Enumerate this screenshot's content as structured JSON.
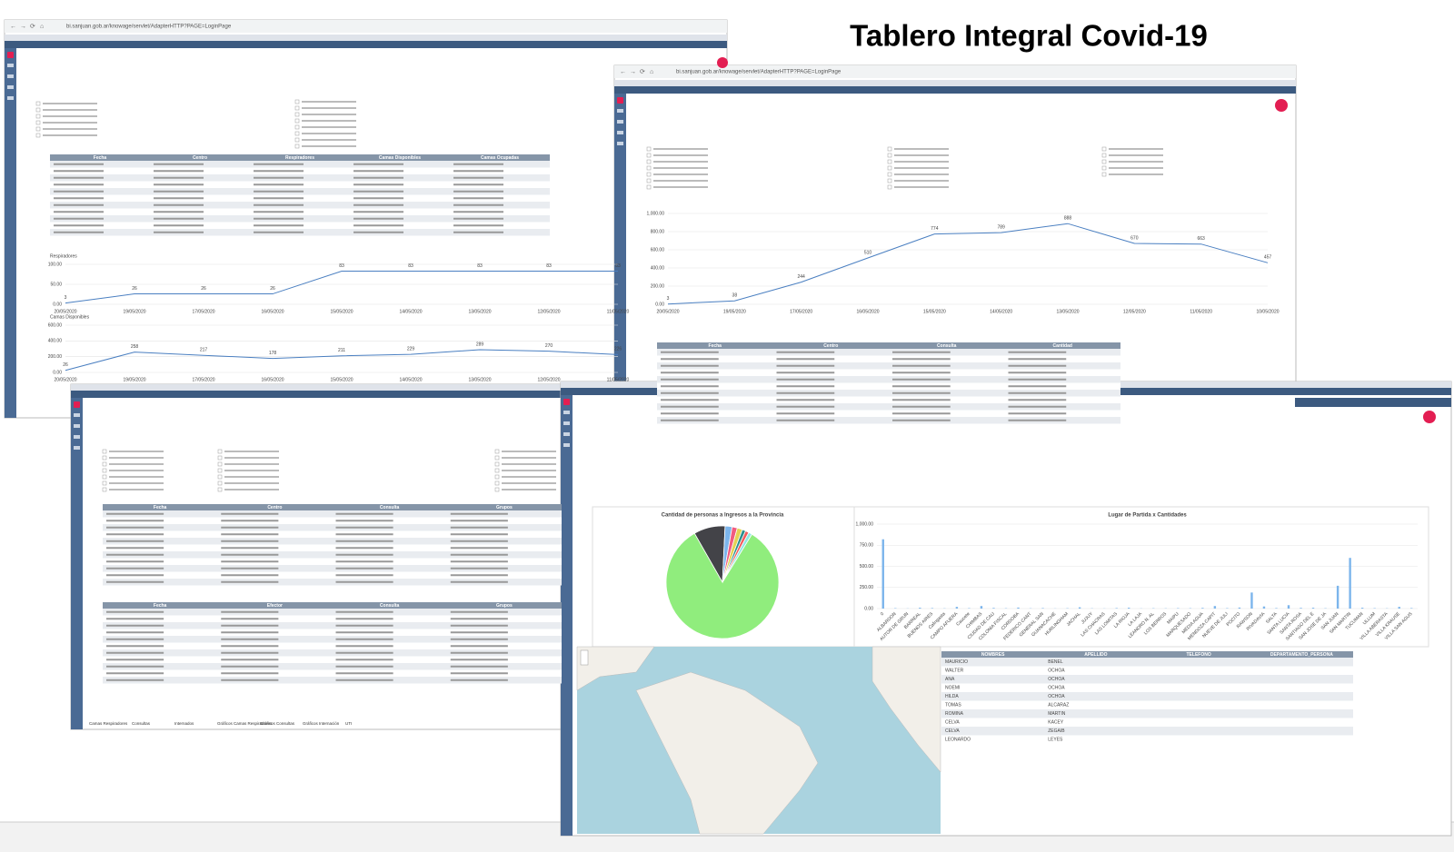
{
  "title": "Tablero Integral Covid-19",
  "url": "bi.sanjuan.gob.ar/knowage/servlet/AdapterHTTP?PAGE=LoginPage",
  "tabs": [
    "Camas Respiradores",
    "Consultas",
    "Internados",
    "Gráficos Camas Respiradores",
    "Gráficos Consultas",
    "Gráficos Internación",
    "UTI"
  ],
  "tables": [
    {
      "header": [
        "Fecha",
        "Centro",
        "Respiradores",
        "Camas Disponibles",
        "Camas Ocupadas"
      ]
    },
    {
      "header": [
        "Fecha",
        "Centro",
        "Consulta",
        "Cantidad"
      ]
    },
    {
      "header": [
        "Fecha",
        "Centro",
        "Consulta",
        "Grupos"
      ]
    },
    {
      "header": [
        "Fecha",
        "Efector",
        "Consulta",
        "Grupos"
      ]
    },
    {
      "header": [
        "NOMBRES",
        "APELLIDO",
        "TELEFONO",
        "DEPARTAMENTO_PERSONA"
      ],
      "rows": [
        [
          "MAURICIO",
          "BENEL"
        ],
        [
          "WALTER",
          "OCHOA"
        ],
        [
          "ANA",
          "OCHOA"
        ],
        [
          "NOEMI",
          "OCHOA"
        ],
        [
          "HILDA",
          "OCHOA"
        ],
        [
          "TOMAS",
          "ALCARAZ"
        ],
        [
          "ROMINA",
          "MARTIN"
        ],
        [
          "CELVA",
          "KACEY"
        ],
        [
          "CELVA",
          "ZEGAIB"
        ],
        [
          "LEONARDO",
          "LEYES"
        ]
      ]
    }
  ],
  "charts": [
    {
      "type": "line",
      "title": "Respiradores",
      "categories": [
        "20/05/2020",
        "19/05/2020",
        "17/05/2020",
        "16/05/2020",
        "15/05/2020",
        "14/05/2020",
        "13/05/2020",
        "12/05/2020",
        "11/05/2020"
      ],
      "values": [
        3,
        26,
        26,
        26,
        83,
        83,
        83,
        83,
        83
      ],
      "color": "#4a7fc1",
      "ylim": [
        0,
        100
      ],
      "yticks": [
        {
          "value": 0,
          "label": "0.00"
        },
        {
          "value": 50,
          "label": "50.00"
        },
        {
          "value": 100,
          "label": "100.00"
        }
      ]
    },
    {
      "type": "line",
      "title": "Camas Disponibles",
      "categories": [
        "20/05/2020",
        "19/05/2020",
        "17/05/2020",
        "16/05/2020",
        "15/05/2020",
        "14/05/2020",
        "13/05/2020",
        "12/05/2020",
        "11/05/2020"
      ],
      "values": [
        26,
        258,
        217,
        178,
        211,
        229,
        289,
        270,
        226
      ],
      "color": "#4a7fc1",
      "ylim": [
        0,
        600
      ],
      "yticks": [
        {
          "value": 0,
          "label": "0.00"
        },
        {
          "value": 200,
          "label": "200.00"
        },
        {
          "value": 400,
          "label": "400.00"
        },
        {
          "value": 600,
          "label": "600.00"
        }
      ]
    },
    {
      "type": "line",
      "categories": [
        "20/05/2020",
        "19/05/2020",
        "17/05/2020",
        "16/05/2020",
        "15/05/2020",
        "14/05/2020",
        "13/05/2020",
        "12/05/2020",
        "11/05/2020",
        "10/05/2020"
      ],
      "values": [
        3,
        38,
        244,
        510,
        774,
        789,
        888,
        670,
        663,
        457
      ],
      "color": "#4a7fc1",
      "ylim": [
        0,
        1000
      ],
      "yticks": [
        {
          "value": 0,
          "label": "0.00"
        },
        {
          "value": 200,
          "label": "200.00"
        },
        {
          "value": 400,
          "label": "400.00"
        },
        {
          "value": 600,
          "label": "600.00"
        },
        {
          "value": 800,
          "label": "800.00"
        },
        {
          "value": 1000,
          "label": "1,000.00"
        }
      ]
    },
    {
      "type": "pie",
      "title": "Cantidad de personas a Ingresos a la Provincia",
      "values": [
        83,
        9,
        2,
        1.5,
        1.5,
        1,
        1,
        1
      ],
      "colors": [
        "#90ed7d",
        "#434348",
        "#7cb5ec",
        "#f15c80",
        "#e4d354",
        "#2b908f",
        "#f45b5b",
        "#91e8e1"
      ]
    },
    {
      "type": "bar",
      "title": "Lugar de Partida x Cantidades",
      "categories": [
        "0",
        "ALBARDON",
        "AUTOR DE GRUN",
        "BARREAL",
        "BUENOS AIRES",
        "Calingasta",
        "CAMPO AFUERA",
        "Caucete",
        "CHIMBAS",
        "CIUDAD DE CAU",
        "COLONIA FISCAL",
        "CORDOBA",
        "FEDERICO CANT",
        "GENERAL SAN",
        "GUANACACHE",
        "HURLINGHAM",
        "JACHAL",
        "JUJUY",
        "LAS CHACRAS",
        "LAS LOMITAS",
        "LA RIOJA",
        "LA LAJA",
        "LEANDRO N. AL",
        "LOS BERROS",
        "MAIPU",
        "MARQUESADO",
        "MEDIA AGUA",
        "MENDOZA CAPIT",
        "NUEVE DE JULI",
        "POCITO",
        "RAWSON",
        "RIVADAVIA",
        "SALTA",
        "SANTA LUCIA",
        "SANTA ROSA",
        "SANTIAGO DEL E",
        "SAN JOSE DE JA",
        "SAN JUAN",
        "SAN MARTIN",
        "TUCUMAN",
        "ULLUM",
        "VILLA ABERASTA",
        "VILLA KRAUSE",
        "VILLA SAN AGUS"
      ],
      "values": [
        820,
        5,
        2,
        10,
        6,
        3,
        20,
        5,
        30,
        8,
        4,
        12,
        3,
        6,
        2,
        4,
        15,
        3,
        2,
        6,
        10,
        2,
        4,
        3,
        5,
        4,
        8,
        30,
        5,
        12,
        190,
        25,
        6,
        40,
        8,
        10,
        4,
        270,
        600,
        10,
        5,
        3,
        20,
        6
      ],
      "color": "#7cb5ec",
      "ylim": [
        0,
        1000
      ],
      "yticks": [
        {
          "value": 0,
          "label": "0.00"
        },
        {
          "value": 250,
          "label": "250.00"
        },
        {
          "value": 500,
          "label": "500.00"
        },
        {
          "value": 750,
          "label": "750.00"
        },
        {
          "value": 1000,
          "label": "1,000.00"
        }
      ]
    }
  ]
}
